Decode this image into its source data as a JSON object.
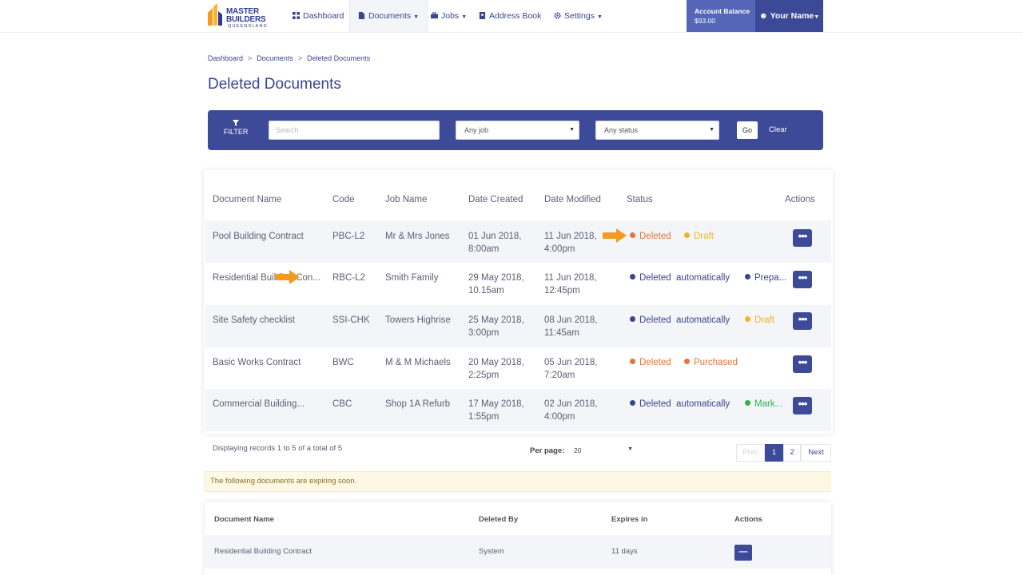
{
  "nav": {
    "logo_line1": "MASTER",
    "logo_line2": "BUILDERS",
    "logo_sub": "QUEENSLAND",
    "items": [
      "Dashboard",
      "Documents",
      "Jobs",
      "Address Book",
      "Settings"
    ],
    "balance_label": "Account Balance",
    "balance_value": "$93.00",
    "user": "Your Name"
  },
  "breadcrumb": [
    "Dashboard",
    "Documents",
    "Deleted Documents"
  ],
  "page_title": "Deleted Documents",
  "filter": {
    "label": "FILTER",
    "search_placeholder": "Search",
    "job_select": "Any job",
    "status_select": "Any status",
    "go": "Go",
    "clear": "Clear"
  },
  "table": {
    "headers": [
      "Document Name",
      "Code",
      "Job Name",
      "Date Created",
      "Date Modified",
      "Status",
      "Actions"
    ],
    "rows": [
      {
        "name": "Pool Building Contract",
        "code": "PBC-L2",
        "job": "Mr & Mrs Jones",
        "created1": "01 Jun 2018,",
        "created2": "8:00am",
        "modified1": "11 Jun 2018,",
        "modified2": "4:00pm",
        "status1": "Deleted",
        "status2": "Draft"
      },
      {
        "name": "Residential Building Con...",
        "code": "RBC-L2",
        "job": "Smith Family",
        "created1": "29 May 2018,",
        "created2": "10.15am",
        "modified1": "11 Jun 2018,",
        "modified2": "12:45pm",
        "status1": "Deleted  automatically",
        "status2": "Prepa..."
      },
      {
        "name": "Site Safety checklist",
        "code": "SSI-CHK",
        "job": "Towers Highrise",
        "created1": "25 May 2018,",
        "created2": "3:00pm",
        "modified1": "08 Jun 2018,",
        "modified2": "11:45am",
        "status1": "Deleted  automatically",
        "status2": "Draft"
      },
      {
        "name": "Basic Works Contract",
        "code": "BWC",
        "job": "M & M Michaels",
        "created1": "20 May 2018,",
        "created2": "2:25pm",
        "modified1": "05 Jun 2018,",
        "modified2": "7:20am",
        "status1": "Deleted",
        "status2": "Purchased"
      },
      {
        "name": "Commercial Building...",
        "code": "CBC",
        "job": "Shop 1A Refurb",
        "created1": "17 May 2018,",
        "created2": "1:55pm",
        "modified1": "02 Jun 2018,",
        "modified2": "4:00pm",
        "status1": "Deleted  automatically",
        "status2": "Mark..."
      }
    ],
    "action_glyph": "•••"
  },
  "pagination": {
    "records_text": "Displaying records 1 to 5 of a total of 5",
    "per_page_label": "Per page:",
    "per_page_value": "20",
    "prev": "Prev",
    "page1": "1",
    "page2": "2",
    "next": "Next"
  },
  "expiring": {
    "notice": "The following documents are expiring soon.",
    "headers": [
      "Document Name",
      "Deleted By",
      "Expires in",
      "Actions"
    ],
    "row": {
      "name": "Residential Building Contract",
      "deleted_by": "System",
      "expires": "11 days"
    },
    "action_glyph": "—"
  },
  "colors": {
    "primary": "#3d4a98",
    "deleted_orange": "#e0763a",
    "deleted_auto": "#3a458f",
    "draft_yellow": "#f0b429",
    "marked_green": "#2bb24c",
    "arrow": "#f39a1f"
  }
}
